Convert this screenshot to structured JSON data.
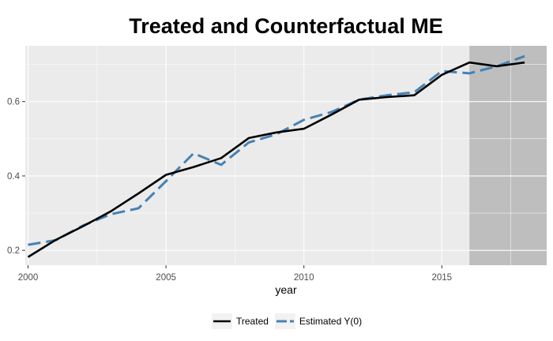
{
  "chart_data": {
    "type": "line",
    "title": "Treated and Counterfactual ME",
    "xlabel": "year",
    "ylabel": "",
    "xlim": [
      1999.9,
      2018.8
    ],
    "ylim": [
      0.16,
      0.75
    ],
    "x_ticks": [
      2000,
      2005,
      2010,
      2015
    ],
    "x_tick_labels": [
      "2000",
      "2005",
      "2010",
      "2015"
    ],
    "y_ticks": [
      0.2,
      0.4,
      0.6
    ],
    "y_tick_labels": [
      "0.2",
      "0.4",
      "0.6"
    ],
    "grid": true,
    "legend_position": "bottom",
    "shaded_region": {
      "from": 2016,
      "to": 2018.8,
      "color": "#bebebe"
    },
    "series": [
      {
        "name": "Treated",
        "color": "#000000",
        "dash": "solid",
        "x": [
          2000,
          2001,
          2002,
          2003,
          2004,
          2005,
          2006,
          2007,
          2008,
          2009,
          2010,
          2011,
          2012,
          2013,
          2014,
          2015,
          2016,
          2017,
          2018
        ],
        "y": [
          0.182,
          0.228,
          0.265,
          0.305,
          0.353,
          0.403,
          0.424,
          0.448,
          0.502,
          0.517,
          0.527,
          0.565,
          0.605,
          0.612,
          0.617,
          0.672,
          0.705,
          0.695,
          0.705
        ]
      },
      {
        "name": "Estimated Y(0)",
        "color": "#4682b4",
        "dash": "dashed",
        "x": [
          2000,
          2001,
          2002,
          2003,
          2004,
          2005,
          2006,
          2007,
          2008,
          2009,
          2010,
          2011,
          2012,
          2013,
          2014,
          2015,
          2016,
          2017,
          2018
        ],
        "y": [
          0.215,
          0.227,
          0.267,
          0.297,
          0.313,
          0.386,
          0.461,
          0.43,
          0.49,
          0.512,
          0.551,
          0.572,
          0.605,
          0.617,
          0.625,
          0.682,
          0.676,
          0.695,
          0.722
        ]
      }
    ]
  }
}
